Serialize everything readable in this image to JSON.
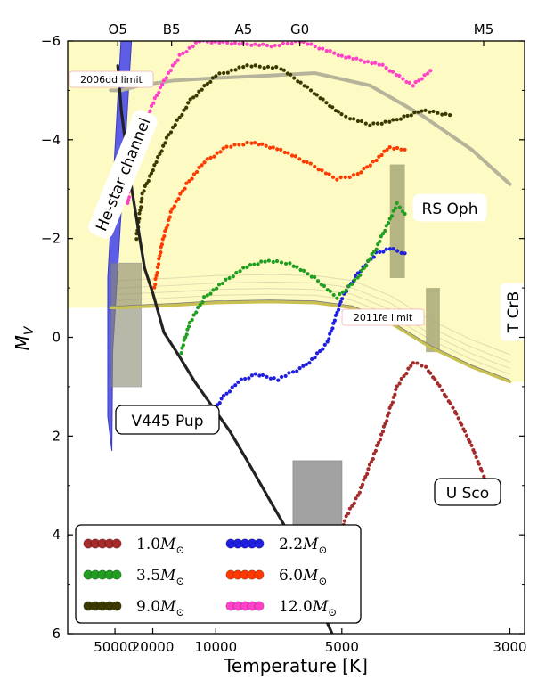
{
  "chart_data": {
    "type": "scatter",
    "xlabel": "Temperature [K]",
    "ylabel": "M",
    "ylabel_sub": "V",
    "xscale": "reciprocal",
    "xlim": [
      -1.75e-05,
      0.000345
    ],
    "ylim": [
      6,
      -6
    ],
    "x_ticks": [
      {
        "label": "50000",
        "value": 50000
      },
      {
        "label": "20000",
        "value": 20000
      },
      {
        "label": "10000",
        "value": 10000
      },
      {
        "label": "5000",
        "value": 5000
      },
      {
        "label": "3000",
        "value": 3000
      }
    ],
    "y_ticks": [
      -6,
      -4,
      -2,
      0,
      2,
      4,
      6
    ],
    "top_ticks": [
      {
        "label": "O5",
        "value": 45000
      },
      {
        "label": "B5",
        "value": 15400
      },
      {
        "label": "A5",
        "value": 8200
      },
      {
        "label": "G0",
        "value": 6000
      },
      {
        "label": "M5",
        "value": 3200
      }
    ],
    "annotations": {
      "he_star": "He-star channel",
      "v445": "V445 Pup",
      "rs_oph": "RS Oph",
      "t_crb": "T CrB",
      "u_sco": "U Sco",
      "limit_2006dd": "2006dd limit",
      "limit_2011fe": "2011fe limit"
    },
    "legend": [
      {
        "label": "1.0",
        "mass": 1.0,
        "color": "#a52a2a"
      },
      {
        "label": "2.2",
        "mass": 2.2,
        "color": "#1f1fe0"
      },
      {
        "label": "3.5",
        "mass": 3.5,
        "color": "#1f9e1f"
      },
      {
        "label": "6.0",
        "mass": 6.0,
        "color": "#ff3a00"
      },
      {
        "label": "9.0",
        "mass": 9.0,
        "color": "#3a3a00"
      },
      {
        "label": "12.0",
        "mass": 12.0,
        "color": "#ff40c8"
      }
    ],
    "legend_unit": "M⊙",
    "legend_location": "lower-left",
    "series": [
      {
        "mass": 1.0,
        "color": "#a52a2a",
        "points": [
          [
            5200,
            4.9
          ],
          [
            5100,
            4.4
          ],
          [
            5050,
            4.1
          ],
          [
            4950,
            3.7
          ],
          [
            4700,
            3.2
          ],
          [
            4500,
            2.6
          ],
          [
            4300,
            1.9
          ],
          [
            4100,
            1.0
          ],
          [
            3900,
            0.5
          ],
          [
            3750,
            0.6
          ],
          [
            3600,
            1.0
          ],
          [
            3450,
            1.5
          ],
          [
            3300,
            2.2
          ],
          [
            3200,
            2.8
          ],
          [
            3150,
            3.2
          ]
        ]
      },
      {
        "mass": 2.2,
        "color": "#1f1fe0",
        "points": [
          [
            10200,
            1.5
          ],
          [
            9400,
            1.2
          ],
          [
            8500,
            0.9
          ],
          [
            7600,
            0.75
          ],
          [
            6700,
            0.85
          ],
          [
            6200,
            0.7
          ],
          [
            5900,
            0.6
          ],
          [
            5600,
            0.4
          ],
          [
            5300,
            0.1
          ],
          [
            5000,
            -0.8
          ],
          [
            4700,
            -1.3
          ],
          [
            4400,
            -1.7
          ],
          [
            4200,
            -1.8
          ],
          [
            4000,
            -1.7
          ]
        ]
      },
      {
        "mass": 3.5,
        "color": "#1f9e1f",
        "points": [
          [
            13800,
            0.3
          ],
          [
            12600,
            -0.3
          ],
          [
            11000,
            -0.8
          ],
          [
            9500,
            -1.1
          ],
          [
            8200,
            -1.4
          ],
          [
            7200,
            -1.55
          ],
          [
            6300,
            -1.5
          ],
          [
            5600,
            -1.2
          ],
          [
            5100,
            -0.8
          ],
          [
            4700,
            -1.2
          ],
          [
            4400,
            -1.8
          ],
          [
            4200,
            -2.4
          ],
          [
            4100,
            -2.7
          ],
          [
            4000,
            -2.5
          ]
        ]
      },
      {
        "mass": 6.0,
        "color": "#ff3a00",
        "points": [
          [
            19500,
            -1.0
          ],
          [
            17500,
            -1.9
          ],
          [
            15300,
            -2.6
          ],
          [
            13000,
            -3.1
          ],
          [
            11000,
            -3.55
          ],
          [
            9200,
            -3.85
          ],
          [
            7800,
            -3.95
          ],
          [
            6600,
            -3.8
          ],
          [
            5700,
            -3.5
          ],
          [
            5100,
            -3.2
          ],
          [
            4700,
            -3.3
          ],
          [
            4400,
            -3.6
          ],
          [
            4200,
            -3.85
          ],
          [
            4000,
            -3.8
          ]
        ]
      },
      {
        "mass": 9.0,
        "color": "#3a3a00",
        "points": [
          [
            27000,
            -2.0
          ],
          [
            24000,
            -2.9
          ],
          [
            20000,
            -3.4
          ],
          [
            16000,
            -4.1
          ],
          [
            12500,
            -4.8
          ],
          [
            10000,
            -5.3
          ],
          [
            8000,
            -5.5
          ],
          [
            6600,
            -5.45
          ],
          [
            5700,
            -5.0
          ],
          [
            5000,
            -4.5
          ],
          [
            4500,
            -4.3
          ],
          [
            4100,
            -4.4
          ],
          [
            3800,
            -4.6
          ],
          [
            3500,
            -4.5
          ]
        ]
      },
      {
        "mass": 12.0,
        "color": "#ff40c8",
        "points": [
          [
            33000,
            -2.7
          ],
          [
            30000,
            -3.4
          ],
          [
            26000,
            -4.1
          ],
          [
            21000,
            -4.6
          ],
          [
            17000,
            -5.2
          ],
          [
            14000,
            -5.7
          ],
          [
            11500,
            -6.0
          ],
          [
            6800,
            -5.9
          ],
          [
            6000,
            -6.0
          ],
          [
            5000,
            -5.7
          ],
          [
            4300,
            -5.5
          ],
          [
            3900,
            -5.1
          ],
          [
            3700,
            -5.4
          ]
        ]
      }
    ],
    "zams_line": {
      "color": "#222222",
      "points": [
        [
          45000,
          -5.5
        ],
        [
          40000,
          -4.6
        ],
        [
          35000,
          -3.9
        ],
        [
          30000,
          -3.0
        ],
        [
          26000,
          -2.2
        ],
        [
          23000,
          -1.4
        ],
        [
          20000,
          -0.9
        ],
        [
          17000,
          -0.1
        ],
        [
          14000,
          0.4
        ],
        [
          12000,
          0.9
        ],
        [
          10000,
          1.5
        ],
        [
          9000,
          1.9
        ],
        [
          8000,
          2.5
        ],
        [
          7000,
          3.3
        ],
        [
          6300,
          4.0
        ],
        [
          5900,
          4.6
        ],
        [
          5500,
          5.4
        ],
        [
          5200,
          6.0
        ]
      ]
    },
    "limits": {
      "2006dd": {
        "color": "#b5b49a",
        "points": [
          [
            60000,
            -5.0
          ],
          [
            40000,
            -5.0
          ],
          [
            25000,
            -5.1
          ],
          [
            15000,
            -5.2
          ],
          [
            10000,
            -5.25
          ],
          [
            7000,
            -5.3
          ],
          [
            5600,
            -5.35
          ],
          [
            4500,
            -5.1
          ],
          [
            3800,
            -4.5
          ],
          [
            3300,
            -3.8
          ],
          [
            3000,
            -3.1
          ]
        ]
      },
      "2011fe": {
        "color": "#c8c050",
        "points": [
          [
            60000,
            -0.6
          ],
          [
            40000,
            -0.6
          ],
          [
            25000,
            -0.62
          ],
          [
            15000,
            -0.65
          ],
          [
            10000,
            -0.7
          ],
          [
            7000,
            -0.72
          ],
          [
            5600,
            -0.7
          ],
          [
            4800,
            -0.6
          ],
          [
            4200,
            -0.3
          ],
          [
            3700,
            0.2
          ],
          [
            3300,
            0.6
          ],
          [
            3000,
            0.9
          ]
        ]
      }
    },
    "regions": {
      "v445_box": {
        "x": [
          59000,
          24500
        ],
        "y": [
          -1.5,
          1.0
        ]
      },
      "u_sco_box": {
        "x": [
          6200,
          5000
        ],
        "y": [
          2.5,
          3.9
        ]
      },
      "rs_oph_bar": {
        "x": [
          4200,
          4000
        ],
        "y": [
          -3.5,
          -1.2
        ]
      },
      "t_crb_bar": {
        "x": [
          3750,
          3600
        ],
        "y": [
          -1.0,
          0.3
        ]
      }
    }
  }
}
